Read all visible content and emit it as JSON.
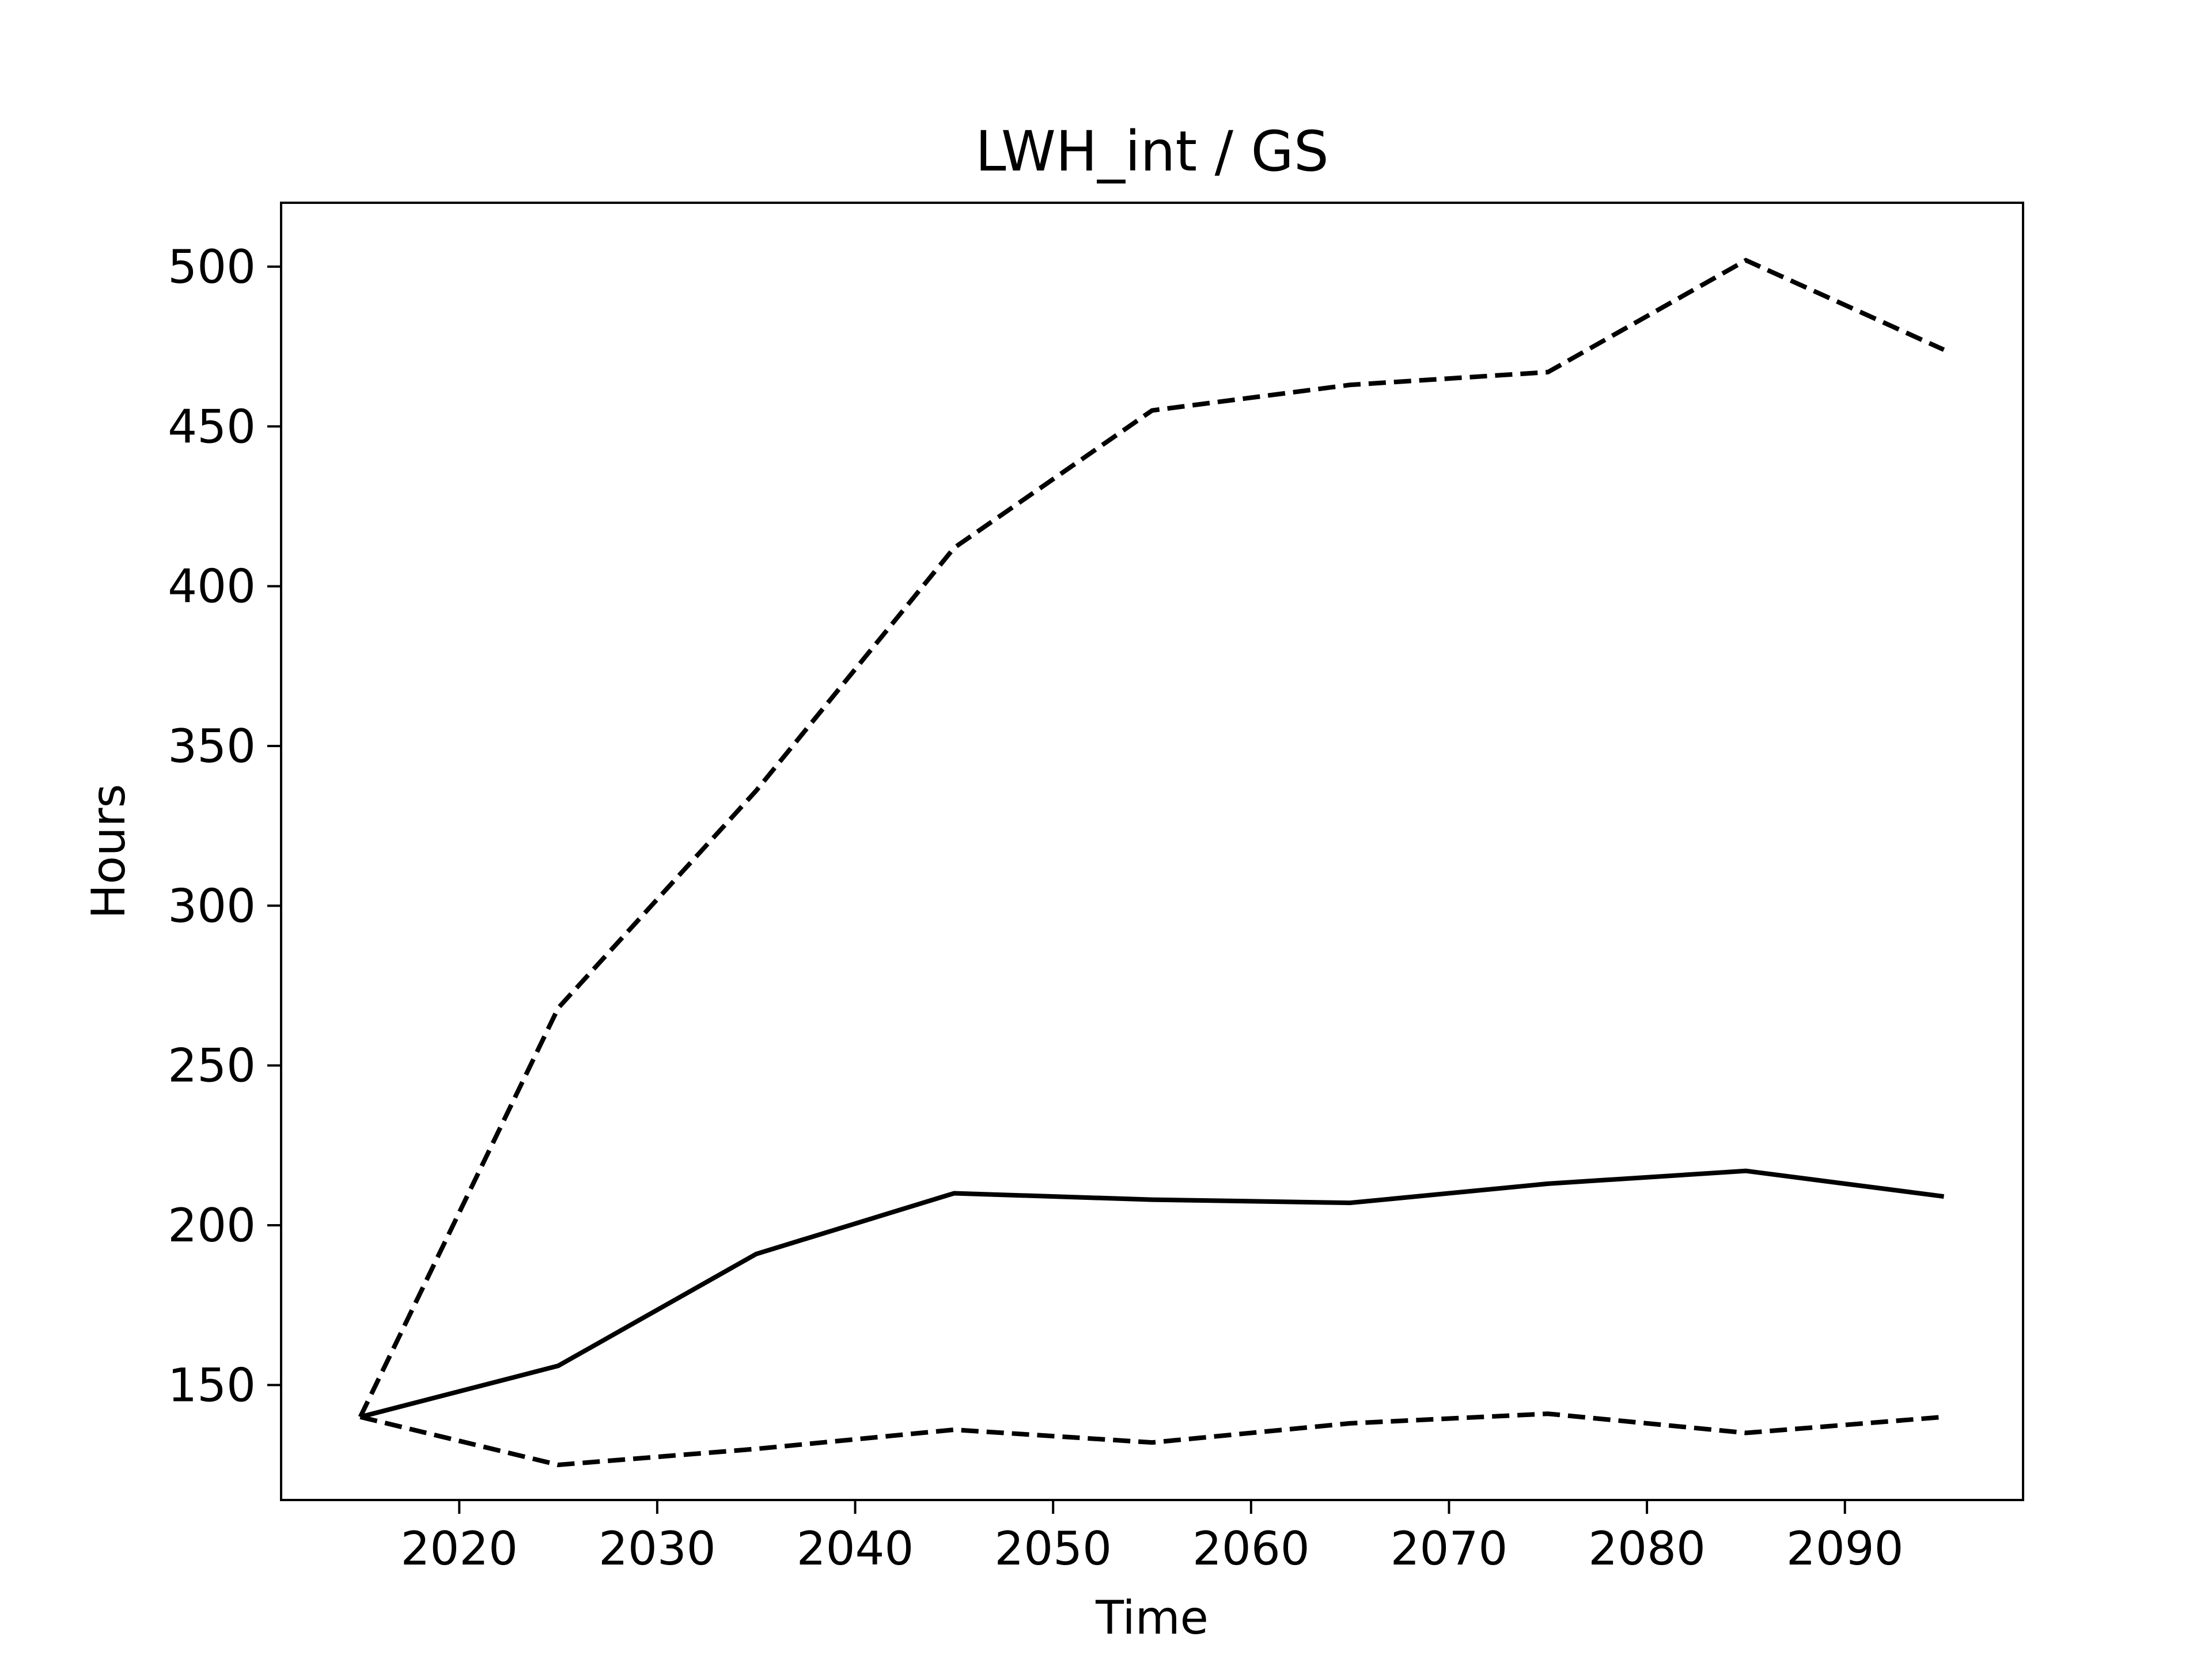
{
  "chart_data": {
    "type": "line",
    "title": "LWH_int / GS",
    "xlabel": "Time",
    "ylabel": "Hours",
    "xlim": [
      2011,
      2099
    ],
    "ylim": [
      114,
      520
    ],
    "xticks": [
      2020,
      2030,
      2040,
      2050,
      2060,
      2070,
      2080,
      2090
    ],
    "yticks": [
      150,
      200,
      250,
      300,
      350,
      400,
      450,
      500
    ],
    "grid": false,
    "legend": "none",
    "x": [
      2015,
      2025,
      2035,
      2045,
      2055,
      2065,
      2075,
      2085,
      2095
    ],
    "series": [
      {
        "style": "solid",
        "color": "#000000",
        "values": [
          140,
          156,
          191,
          210,
          208,
          207,
          213,
          217,
          209
        ]
      },
      {
        "style": "dashed",
        "color": "#000000",
        "values": [
          140,
          268,
          336,
          412,
          455,
          463,
          467,
          502,
          474
        ]
      },
      {
        "style": "dashed",
        "color": "#000000",
        "values": [
          140,
          125,
          130,
          136,
          132,
          138,
          141,
          135,
          140
        ]
      }
    ]
  }
}
